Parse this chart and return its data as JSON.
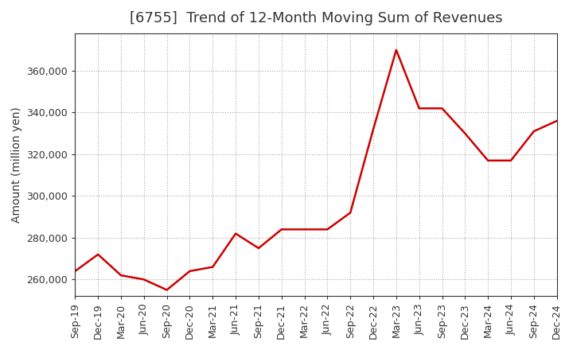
{
  "title": "[6755]  Trend of 12-Month Moving Sum of Revenues",
  "ylabel": "Amount (million yen)",
  "background_color": "#ffffff",
  "grid_color": "#aaaaaa",
  "line_color": "#cc0000",
  "x_labels": [
    "Sep-19",
    "Dec-19",
    "Mar-20",
    "Jun-20",
    "Sep-20",
    "Dec-20",
    "Mar-21",
    "Jun-21",
    "Sep-21",
    "Dec-21",
    "Mar-22",
    "Jun-22",
    "Sep-22",
    "Dec-22",
    "Mar-23",
    "Jun-23",
    "Sep-23",
    "Dec-23",
    "Mar-24",
    "Jun-24",
    "Sep-24",
    "Dec-24"
  ],
  "y_values": [
    264000,
    272000,
    262000,
    260000,
    255000,
    264000,
    266000,
    282000,
    275000,
    284000,
    284000,
    284000,
    292000,
    332000,
    370000,
    342000,
    342000,
    330000,
    317000,
    317000,
    331000,
    336000
  ],
  "ylim_min": 252000,
  "ylim_max": 378000,
  "yticks": [
    260000,
    280000,
    300000,
    320000,
    340000,
    360000
  ],
  "title_fontsize": 13,
  "label_fontsize": 10,
  "tick_fontsize": 9
}
